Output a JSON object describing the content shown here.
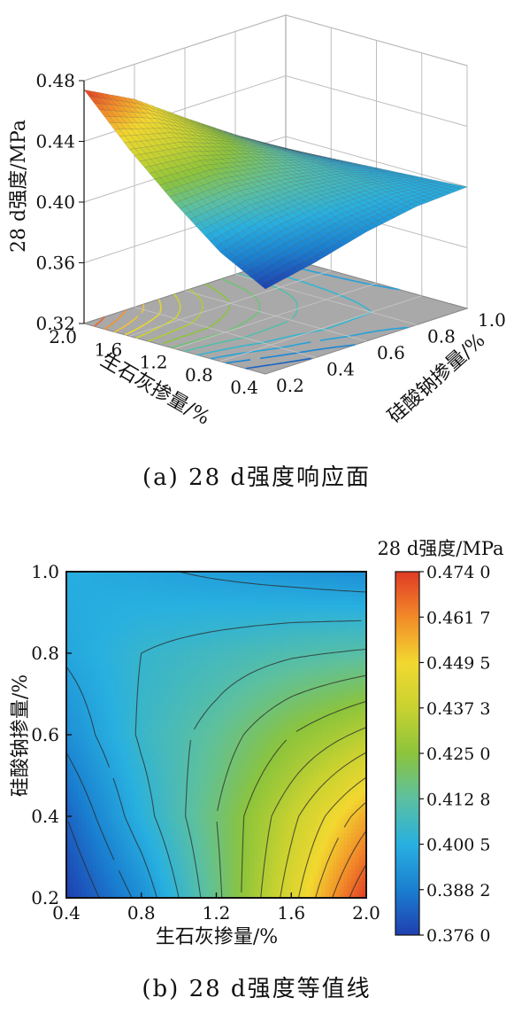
{
  "chart_data": [
    {
      "type": "surface",
      "caption": "(a) 28 d强度响应面",
      "zlabel": "28 d强度/MPa",
      "xlabel": "生石灰掺量/%",
      "ylabel": "硅酸钠掺量/%",
      "x_range": [
        0.4,
        2.0
      ],
      "y_range": [
        0.2,
        1.0
      ],
      "z_range": [
        0.32,
        0.48
      ],
      "z_ticks": [
        "0.48",
        "0.44",
        "0.40",
        "0.36",
        "0.32"
      ],
      "x_ticks": [
        "2.0",
        "1.6",
        "1.2",
        "0.8",
        "0.4"
      ],
      "y_ticks": [
        "0.2",
        "0.4",
        "0.6",
        "0.8",
        "1.0"
      ],
      "surface_grid": {
        "x": [
          0.4,
          0.8,
          1.2,
          1.6,
          2.0
        ],
        "y": [
          0.2,
          0.4,
          0.6,
          0.8,
          1.0
        ],
        "z": [
          [
            0.376,
            0.383,
            0.392,
            0.398,
            0.4
          ],
          [
            0.392,
            0.401,
            0.405,
            0.404,
            0.398
          ],
          [
            0.416,
            0.418,
            0.414,
            0.407,
            0.396
          ],
          [
            0.443,
            0.437,
            0.425,
            0.41,
            0.394
          ],
          [
            0.474,
            0.457,
            0.434,
            0.412,
            0.392
          ]
        ]
      },
      "grid": true
    },
    {
      "type": "contour",
      "caption": "(b) 28 d强度等值线",
      "xlabel": "生石灰掺量/%",
      "ylabel": "硅酸钠掺量/%",
      "xlim": [
        0.4,
        2.0
      ],
      "ylim": [
        0.2,
        1.0
      ],
      "x_ticks": [
        "0.4",
        "0.8",
        "1.2",
        "1.6",
        "2.0"
      ],
      "y_ticks": [
        "0.2",
        "0.4",
        "0.6",
        "0.8",
        "1.0"
      ],
      "colorbar_title": "28 d强度/MPa",
      "colorbar_range": [
        0.376,
        0.474
      ],
      "colorbar_ticks": [
        "0.474 0",
        "0.461 7",
        "0.449 5",
        "0.437 3",
        "0.425 0",
        "0.412 8",
        "0.400 5",
        "0.388 2",
        "0.376 0"
      ],
      "colorbar_colors": [
        "#1f3fb0",
        "#1a7fd0",
        "#28b0e0",
        "#5cc0a0",
        "#8cc43c",
        "#c8d230",
        "#f2d830",
        "#f28a28",
        "#e03a26"
      ],
      "legend_position": "right"
    }
  ]
}
